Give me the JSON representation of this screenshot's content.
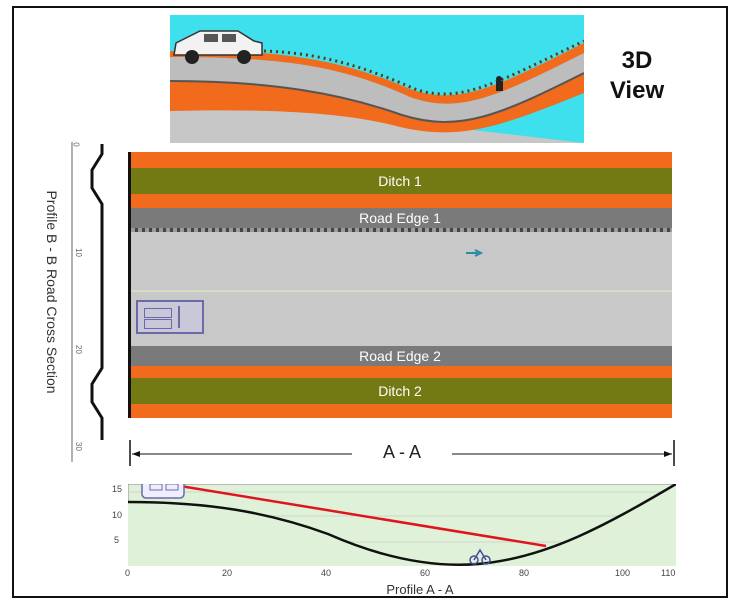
{
  "view3d": {
    "title_line1": "3D",
    "title_line2": "View"
  },
  "plan": {
    "ditch1": "Ditch 1",
    "road_edge1": "Road Edge 1",
    "road_edge2": "Road Edge 2",
    "ditch2": "Ditch 2",
    "dimension_label": "A - A"
  },
  "profile_b": {
    "label": "Profile B - B  Road Cross Section",
    "ticks": [
      "0",
      "10",
      "20",
      "30"
    ]
  },
  "profile_a": {
    "label": "Profile A - A",
    "y_ticks": [
      "15",
      "10",
      "5"
    ],
    "x_ticks": [
      "0",
      "20",
      "40",
      "60",
      "80",
      "100",
      "110"
    ]
  },
  "colors": {
    "sky": "#3ee0ee",
    "orange": "#f26a1b",
    "olive": "#737a14",
    "road_gray": "#c8c8c8",
    "edge_gray": "#7a7a7a",
    "profile_fill": "#dff2d9",
    "sight_line": "#e0141e"
  },
  "icons": [
    "car-icon",
    "motorcycle-icon",
    "arrow-marker-icon"
  ]
}
